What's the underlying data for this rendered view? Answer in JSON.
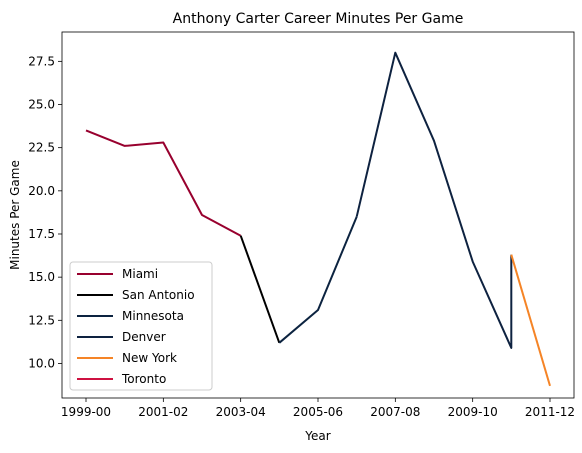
{
  "chart_data": {
    "type": "line",
    "title": "Anthony Carter Career Minutes Per Game",
    "xlabel": "Year",
    "ylabel": "Minutes Per Game",
    "x_categories": [
      "1999-00",
      "2000-01",
      "2001-02",
      "2002-03",
      "2003-04",
      "2004-05",
      "2005-06",
      "2006-07",
      "2007-08",
      "2008-09",
      "2009-10",
      "2010-11",
      "2011-12"
    ],
    "x_tick_labels": [
      "1999-00",
      "2001-02",
      "2003-04",
      "2005-06",
      "2007-08",
      "2009-10",
      "2011-12"
    ],
    "ylim": [
      8.0,
      29.2
    ],
    "y_ticks": [
      10.0,
      12.5,
      15.0,
      17.5,
      20.0,
      22.5,
      25.0,
      27.5
    ],
    "y_tick_labels": [
      "10.0",
      "12.5",
      "15.0",
      "17.5",
      "20.0",
      "22.5",
      "25.0",
      "27.5"
    ],
    "grid": false,
    "legend_position": "lower-left",
    "series": [
      {
        "name": "Miami",
        "color": "#98002e",
        "x": [
          "1999-00",
          "2000-01",
          "2001-02",
          "2002-03",
          "2003-04"
        ],
        "y": [
          23.5,
          22.6,
          22.8,
          18.6,
          17.4
        ]
      },
      {
        "name": "San Antonio",
        "color": "#000000",
        "x": [
          "2003-04",
          "2004-05"
        ],
        "y": [
          17.4,
          11.2
        ]
      },
      {
        "name": "Minnesota",
        "color": "#0c2340",
        "x": [
          "2004-05",
          "2005-06",
          "2006-07"
        ],
        "y": [
          11.2,
          13.1,
          18.5
        ]
      },
      {
        "name": "Denver",
        "color": "#0e2240",
        "x": [
          "2006-07",
          "2007-08",
          "2008-09",
          "2009-10",
          "2010-11",
          "2010-11"
        ],
        "y": [
          18.5,
          28.0,
          22.9,
          15.9,
          10.9,
          16.3
        ]
      },
      {
        "name": "New York",
        "color": "#f58426",
        "x": [
          "2010-11",
          "2011-12"
        ],
        "y": [
          16.3,
          8.7
        ]
      },
      {
        "name": "Toronto",
        "color": "#ce1141",
        "x": [],
        "y": []
      }
    ]
  }
}
